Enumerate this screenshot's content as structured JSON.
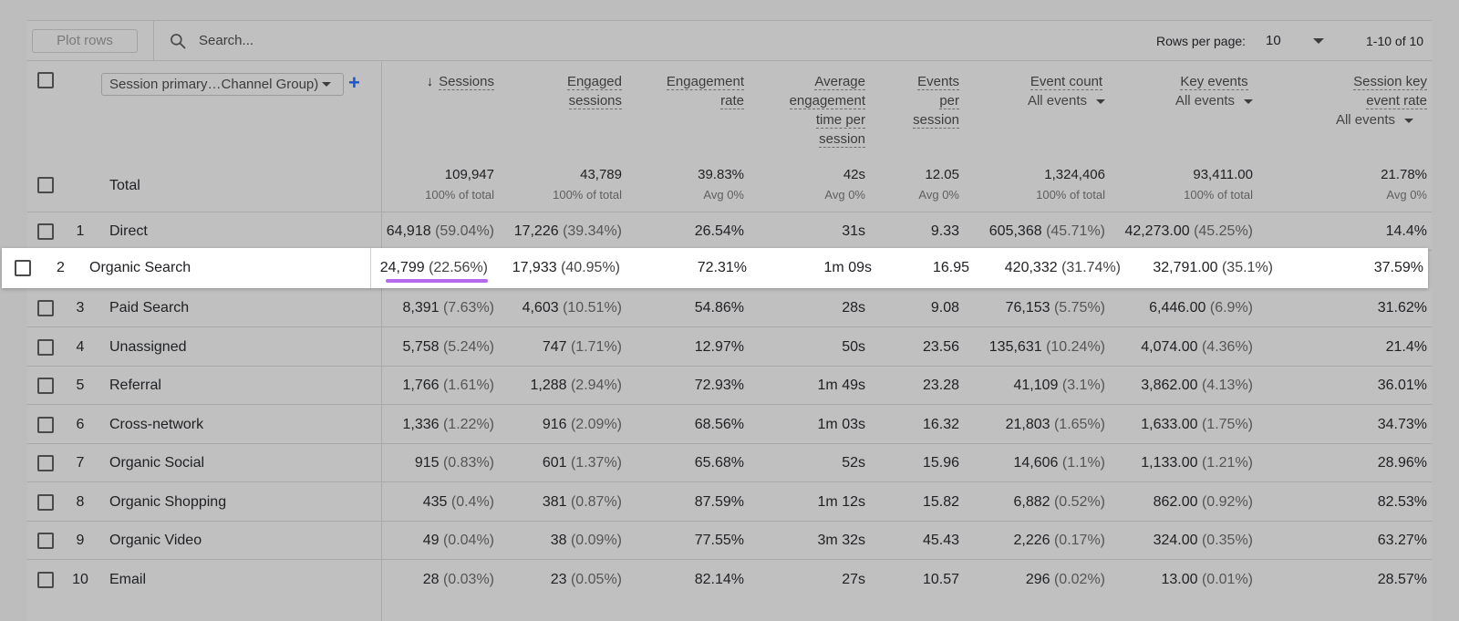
{
  "toolbar": {
    "plot_rows": "Plot rows",
    "search_placeholder": "Search...",
    "rows_per_page_label": "Rows per page:",
    "rows_per_page_value": "10",
    "range": "1-10 of 10"
  },
  "dimension": {
    "chip_label": "Session primary…Channel Group)",
    "add_icon": "plus-icon"
  },
  "columns": [
    {
      "l1": "",
      "l2": "Sessions",
      "sub": ""
    },
    {
      "l1": "Engaged",
      "l2": "sessions",
      "sub": ""
    },
    {
      "l1": "Engagement",
      "l2": "rate",
      "sub": ""
    },
    {
      "l1": "Average",
      "l2": "engagement",
      "l3": "time per",
      "l4": "session",
      "sub": ""
    },
    {
      "l1": "Events",
      "l2": "per",
      "l3": "session",
      "sub": ""
    },
    {
      "l1": "Event count",
      "sub": "All events"
    },
    {
      "l1": "Key events",
      "sub": "All events"
    },
    {
      "l1": "Session key",
      "l2": "event rate",
      "sub": "All events"
    }
  ],
  "totals": {
    "label": "Total",
    "values": [
      "109,947",
      "43,789",
      "39.83%",
      "42s",
      "12.05",
      "1,324,406",
      "93,411.00",
      "21.78%"
    ],
    "subs": [
      "100% of total",
      "100% of total",
      "Avg 0%",
      "Avg 0%",
      "Avg 0%",
      "100% of total",
      "100% of total",
      "Avg 0%"
    ]
  },
  "rows": [
    {
      "idx": "1",
      "name": "Direct",
      "sessions": "64,918",
      "sessions_pct": "(59.04%)",
      "engaged": "17,226",
      "engaged_pct": "(39.34%)",
      "rate": "26.54%",
      "avg": "31s",
      "eps": "9.33",
      "count": "605,368",
      "count_pct": "(45.71%)",
      "key": "42,273.00",
      "key_pct": "(45.25%)",
      "skr": "14.4%"
    },
    {
      "idx": "2",
      "name": "Organic Search",
      "sessions": "24,799",
      "sessions_pct": "(22.56%)",
      "engaged": "17,933",
      "engaged_pct": "(40.95%)",
      "rate": "72.31%",
      "avg": "1m 09s",
      "eps": "16.95",
      "count": "420,332",
      "count_pct": "(31.74%)",
      "key": "32,791.00",
      "key_pct": "(35.1%)",
      "skr": "37.59%"
    },
    {
      "idx": "3",
      "name": "Paid Search",
      "sessions": "8,391",
      "sessions_pct": "(7.63%)",
      "engaged": "4,603",
      "engaged_pct": "(10.51%)",
      "rate": "54.86%",
      "avg": "28s",
      "eps": "9.08",
      "count": "76,153",
      "count_pct": "(5.75%)",
      "key": "6,446.00",
      "key_pct": "(6.9%)",
      "skr": "31.62%"
    },
    {
      "idx": "4",
      "name": "Unassigned",
      "sessions": "5,758",
      "sessions_pct": "(5.24%)",
      "engaged": "747",
      "engaged_pct": "(1.71%)",
      "rate": "12.97%",
      "avg": "50s",
      "eps": "23.56",
      "count": "135,631",
      "count_pct": "(10.24%)",
      "key": "4,074.00",
      "key_pct": "(4.36%)",
      "skr": "21.4%"
    },
    {
      "idx": "5",
      "name": "Referral",
      "sessions": "1,766",
      "sessions_pct": "(1.61%)",
      "engaged": "1,288",
      "engaged_pct": "(2.94%)",
      "rate": "72.93%",
      "avg": "1m 49s",
      "eps": "23.28",
      "count": "41,109",
      "count_pct": "(3.1%)",
      "key": "3,862.00",
      "key_pct": "(4.13%)",
      "skr": "36.01%"
    },
    {
      "idx": "6",
      "name": "Cross-network",
      "sessions": "1,336",
      "sessions_pct": "(1.22%)",
      "engaged": "916",
      "engaged_pct": "(2.09%)",
      "rate": "68.56%",
      "avg": "1m 03s",
      "eps": "16.32",
      "count": "21,803",
      "count_pct": "(1.65%)",
      "key": "1,633.00",
      "key_pct": "(1.75%)",
      "skr": "34.73%"
    },
    {
      "idx": "7",
      "name": "Organic Social",
      "sessions": "915",
      "sessions_pct": "(0.83%)",
      "engaged": "601",
      "engaged_pct": "(1.37%)",
      "rate": "65.68%",
      "avg": "52s",
      "eps": "15.96",
      "count": "14,606",
      "count_pct": "(1.1%)",
      "key": "1,133.00",
      "key_pct": "(1.21%)",
      "skr": "28.96%"
    },
    {
      "idx": "8",
      "name": "Organic Shopping",
      "sessions": "435",
      "sessions_pct": "(0.4%)",
      "engaged": "381",
      "engaged_pct": "(0.87%)",
      "rate": "87.59%",
      "avg": "1m 12s",
      "eps": "15.82",
      "count": "6,882",
      "count_pct": "(0.52%)",
      "key": "862.00",
      "key_pct": "(0.92%)",
      "skr": "82.53%"
    },
    {
      "idx": "9",
      "name": "Organic Video",
      "sessions": "49",
      "sessions_pct": "(0.04%)",
      "engaged": "38",
      "engaged_pct": "(0.09%)",
      "rate": "77.55%",
      "avg": "3m 32s",
      "eps": "45.43",
      "count": "2,226",
      "count_pct": "(0.17%)",
      "key": "324.00",
      "key_pct": "(0.35%)",
      "skr": "63.27%"
    },
    {
      "idx": "10",
      "name": "Email",
      "sessions": "28",
      "sessions_pct": "(0.03%)",
      "engaged": "23",
      "engaged_pct": "(0.05%)",
      "rate": "82.14%",
      "avg": "27s",
      "eps": "10.57",
      "count": "296",
      "count_pct": "(0.02%)",
      "key": "13.00",
      "key_pct": "(0.01%)",
      "skr": "28.57%"
    }
  ],
  "colors": {
    "overlay": "#c0c0c0",
    "highlight_row": "#ffffff",
    "underline": "#b56aee",
    "add_icon": "#1a55c7"
  }
}
